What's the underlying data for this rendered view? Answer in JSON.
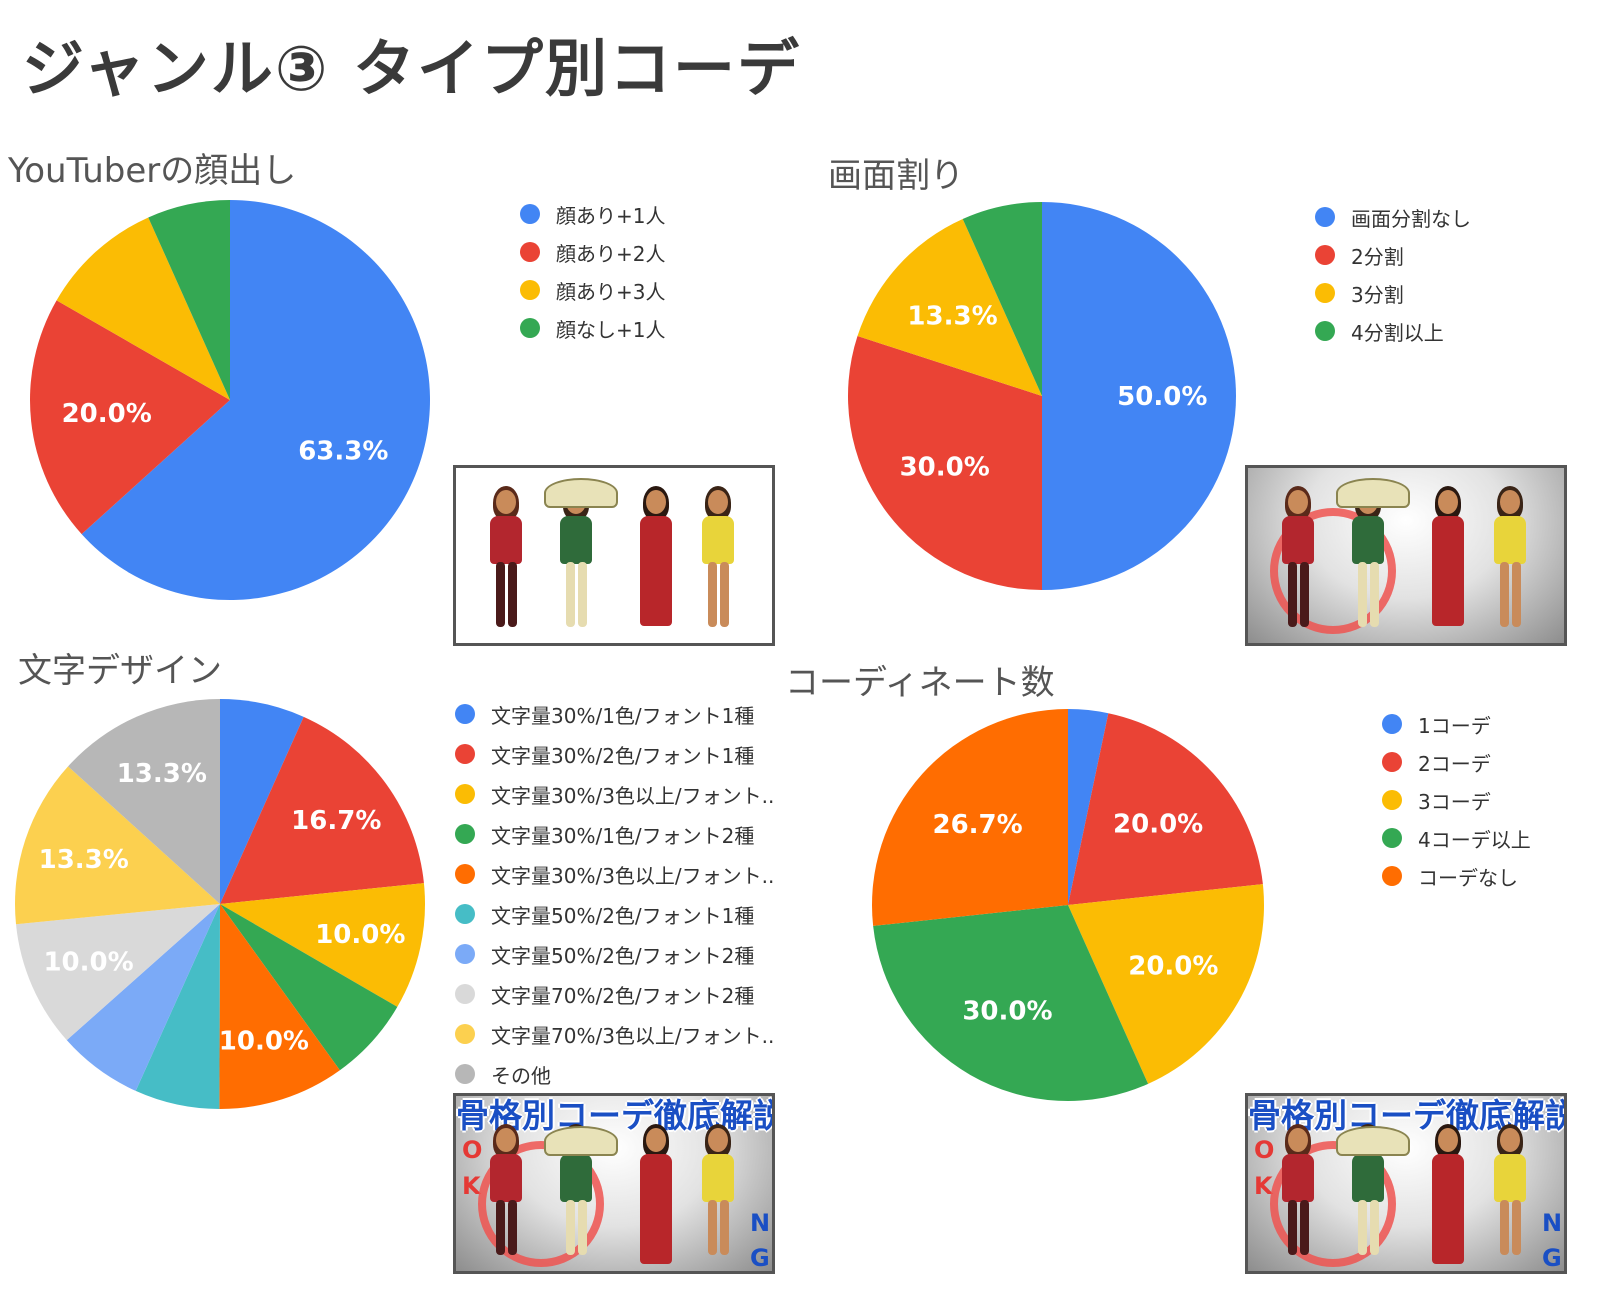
{
  "page": {
    "title": "ジャンル③ タイプ別コーデ"
  },
  "chart_data": [
    {
      "type": "pie",
      "title": "YouTuberの顔出し",
      "categories": [
        "顔あり+1人",
        "顔あり+2人",
        "顔あり+3人",
        "顔なし+1人"
      ],
      "values": [
        63.3,
        20.0,
        10.0,
        6.7
      ],
      "colors": [
        "#4285F4",
        "#EA4335",
        "#FBBC04",
        "#34A853"
      ],
      "labels": [
        "63.3%",
        "20.0%",
        "",
        ""
      ],
      "legend_position": "right"
    },
    {
      "type": "pie",
      "title": "画面割り",
      "categories": [
        "画面分割なし",
        "2分割",
        "3分割",
        "4分割以上"
      ],
      "values": [
        50.0,
        30.0,
        13.3,
        6.7
      ],
      "colors": [
        "#4285F4",
        "#EA4335",
        "#FBBC04",
        "#34A853"
      ],
      "labels": [
        "50.0%",
        "30.0%",
        "13.3%",
        ""
      ],
      "legend_position": "right"
    },
    {
      "type": "pie",
      "title": "文字デザイン",
      "categories": [
        "文字量30%/1色/フォント1種",
        "文字量30%/2色/フォント1種",
        "文字量30%/3色以上/フォント..",
        "文字量30%/1色/フォント2種",
        "文字量30%/3色以上/フォント..",
        "文字量50%/2色/フォント1種",
        "文字量50%/2色/フォント2種",
        "文字量70%/2色/フォント2種",
        "文字量70%/3色以上/フォント..",
        "その他"
      ],
      "values": [
        6.7,
        16.7,
        10.0,
        6.7,
        10.0,
        6.7,
        6.7,
        10.0,
        13.3,
        13.3
      ],
      "colors": [
        "#4285F4",
        "#EA4335",
        "#FBBC04",
        "#34A853",
        "#FF6D01",
        "#46BDC6",
        "#7BAAF7",
        "#D9D9D9",
        "#FCD04F",
        "#B7B7B7"
      ],
      "labels": [
        "",
        "16.7%",
        "10.0%",
        "",
        "10.0%",
        "",
        "",
        "10.0%",
        "13.3%",
        "13.3%"
      ],
      "legend_position": "right"
    },
    {
      "type": "pie",
      "title": "コーディネート数",
      "categories": [
        "1コーデ",
        "2コーデ",
        "3コーデ",
        "4コーデ以上",
        "コーデなし"
      ],
      "values": [
        3.3,
        20.0,
        20.0,
        30.0,
        26.7
      ],
      "colors": [
        "#4285F4",
        "#EA4335",
        "#FBBC04",
        "#34A853",
        "#FF6D01"
      ],
      "labels": [
        "",
        "20.0%",
        "20.0%",
        "30.0%",
        "26.7%"
      ],
      "legend_position": "right"
    }
  ],
  "thumbnails": [
    {
      "caption": "",
      "ok": [
        "",
        ""
      ],
      "ng": [
        "",
        ""
      ]
    },
    {
      "caption": "",
      "ok": [
        "",
        ""
      ],
      "ng": [
        "",
        ""
      ]
    },
    {
      "caption": "骨格別コーデ徹底解説",
      "ok": [
        "O",
        "K"
      ],
      "ng": [
        "N",
        "G"
      ]
    },
    {
      "caption": "骨格別コーデ徹底解説",
      "ok": [
        "O",
        "K"
      ],
      "ng": [
        "N",
        "G"
      ]
    }
  ]
}
